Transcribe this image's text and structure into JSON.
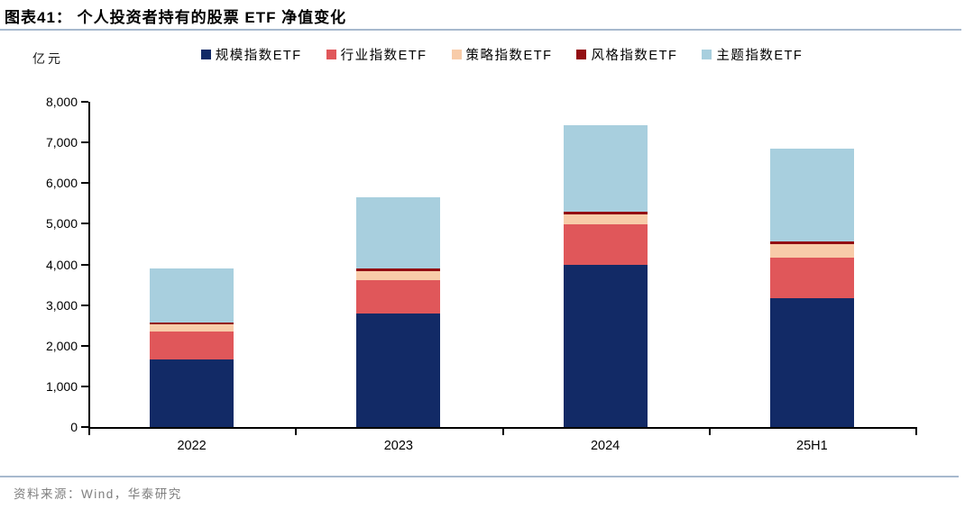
{
  "header": {
    "title": "图表41：  个人投资者持有的股票 ETF 净值变化"
  },
  "footer": {
    "source": "资料来源：Wind，华泰研究"
  },
  "colors": {
    "rule_blue": "#a7b9ce",
    "axis_black": "#000000",
    "source_gray": "#7f7f7f"
  },
  "chart_data": {
    "type": "bar",
    "stacked": true,
    "title": "个人投资者持有的股票 ETF 净值变化",
    "unit_label": "亿元",
    "ylabel": "亿元",
    "xlabel": "",
    "ylim": [
      0,
      8000
    ],
    "ytick_step": 1000,
    "grid": false,
    "legend_position": "top",
    "categories": [
      "2022",
      "2023",
      "2024",
      "25H1"
    ],
    "series": [
      {
        "name": "规模指数ETF",
        "color": "#122a66",
        "values": [
          1660,
          2795,
          3980,
          3180
        ]
      },
      {
        "name": "行业指数ETF",
        "color": "#e0575a",
        "values": [
          685,
          820,
          1010,
          985
        ]
      },
      {
        "name": "策略指数ETF",
        "color": "#f8cca9",
        "values": [
          175,
          230,
          235,
          325
        ]
      },
      {
        "name": "风格指数ETF",
        "color": "#930f13",
        "values": [
          55,
          55,
          75,
          75
        ]
      },
      {
        "name": "主题指数ETF",
        "color": "#a8cfde",
        "values": [
          1325,
          1760,
          2130,
          2275
        ]
      }
    ],
    "totals": [
      3900,
      5660,
      7430,
      6840
    ]
  }
}
